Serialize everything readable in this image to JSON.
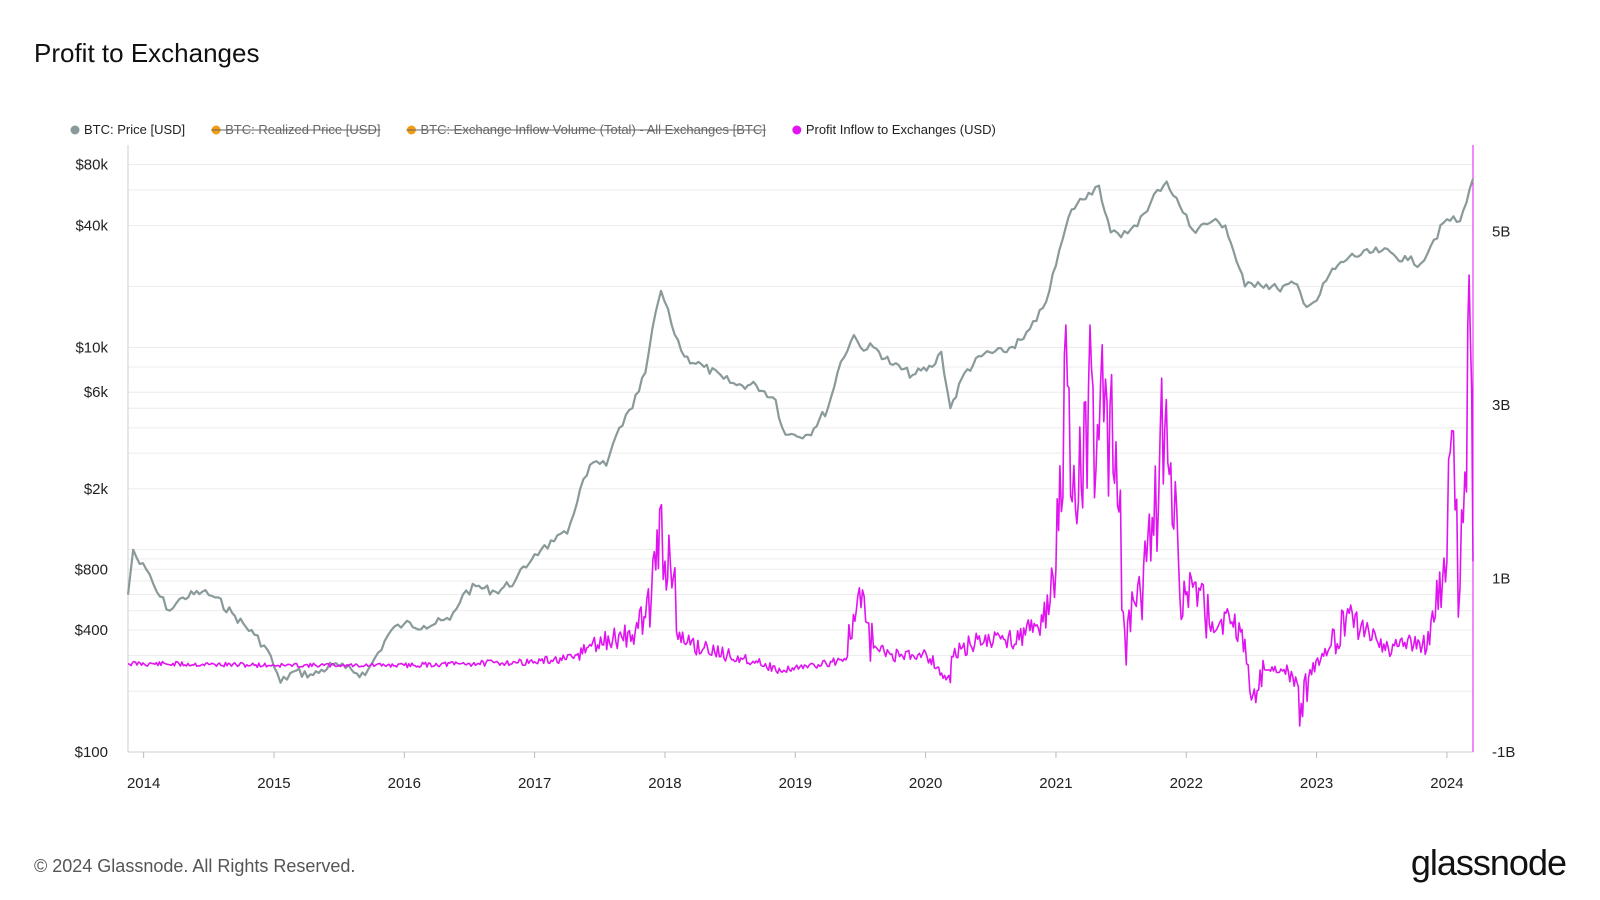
{
  "title": "Profit to Exchanges",
  "footer": {
    "copyright": "© 2024 Glassnode. All Rights Reserved.",
    "logo": "glassnode"
  },
  "colors": {
    "price": "#8a9a9b",
    "realized": "#f39c12",
    "inflow_volume": "#f39c12",
    "profit": "#e014f0",
    "grid": "#ececec"
  },
  "chart_data": {
    "type": "line",
    "legend_position": "top",
    "legend": [
      {
        "label": "BTC: Price [USD]",
        "color": "#8a9a9b",
        "enabled": true
      },
      {
        "label": "BTC: Realized Price [USD]",
        "color": "#f39c12",
        "enabled": false
      },
      {
        "label": "BTC: Exchange Inflow Volume (Total) - All Exchanges [BTC]",
        "color": "#f39c12",
        "enabled": false
      },
      {
        "label": "Profit Inflow to Exchanges (USD)",
        "color": "#e014f0",
        "enabled": true
      }
    ],
    "x_ticks": [
      "2014",
      "2015",
      "2016",
      "2017",
      "2018",
      "2019",
      "2020",
      "2021",
      "2022",
      "2023",
      "2024"
    ],
    "x_range": [
      2013.88,
      2024.2
    ],
    "y_left": {
      "scale": "log",
      "range": [
        100,
        100000
      ],
      "tick_values": [
        80000,
        40000,
        10000,
        6000,
        2000,
        800,
        400,
        100
      ],
      "tick_labels": [
        "$80k",
        "$40k",
        "$10k",
        "$6k",
        "$2k",
        "$800",
        "$400",
        "$100"
      ]
    },
    "y_right": {
      "scale": "linear",
      "range": [
        -1000000000,
        6000000000
      ],
      "tick_values": [
        5000000000,
        3000000000,
        1000000000,
        -1000000000
      ],
      "tick_labels": [
        "5B",
        "3B",
        "1B",
        "-1B"
      ]
    },
    "series": [
      {
        "name": "BTC: Price [USD]",
        "axis": "left",
        "x": [
          2013.88,
          2013.92,
          2013.97,
          2014.02,
          2014.1,
          2014.2,
          2014.3,
          2014.45,
          2014.55,
          2014.7,
          2014.85,
          2014.95,
          2015.05,
          2015.15,
          2015.3,
          2015.45,
          2015.55,
          2015.7,
          2015.8,
          2015.9,
          2016.0,
          2016.15,
          2016.35,
          2016.45,
          2016.55,
          2016.7,
          2016.85,
          2017.0,
          2017.05,
          2017.15,
          2017.25,
          2017.35,
          2017.45,
          2017.55,
          2017.65,
          2017.75,
          2017.85,
          2017.93,
          2017.97,
          2018.05,
          2018.15,
          2018.3,
          2018.45,
          2018.55,
          2018.7,
          2018.85,
          2018.9,
          2018.95,
          2019.1,
          2019.25,
          2019.35,
          2019.45,
          2019.5,
          2019.6,
          2019.75,
          2019.9,
          2020.05,
          2020.12,
          2020.19,
          2020.3,
          2020.45,
          2020.6,
          2020.75,
          2020.85,
          2020.95,
          2021.05,
          2021.12,
          2021.25,
          2021.33,
          2021.42,
          2021.5,
          2021.6,
          2021.7,
          2021.78,
          2021.85,
          2021.95,
          2022.05,
          2022.2,
          2022.3,
          2022.45,
          2022.55,
          2022.7,
          2022.85,
          2022.9,
          2023.0,
          2023.1,
          2023.25,
          2023.5,
          2023.7,
          2023.8,
          2023.9,
          2024.0,
          2024.1,
          2024.15,
          2024.2
        ],
        "y": [
          600,
          1000,
          850,
          800,
          620,
          500,
          580,
          620,
          580,
          470,
          380,
          320,
          220,
          250,
          240,
          270,
          260,
          240,
          310,
          400,
          430,
          420,
          450,
          600,
          660,
          620,
          700,
          950,
          1000,
          1100,
          1200,
          2000,
          2700,
          2600,
          4000,
          5000,
          7500,
          15000,
          19000,
          13000,
          9000,
          8000,
          7000,
          6500,
          6500,
          5500,
          4000,
          3700,
          3700,
          5000,
          8500,
          11500,
          10000,
          10000,
          8200,
          7300,
          8000,
          9500,
          5000,
          7500,
          9300,
          9500,
          11000,
          13500,
          19000,
          34000,
          48000,
          58000,
          63000,
          37000,
          35000,
          40000,
          47000,
          60000,
          66000,
          50000,
          38000,
          42000,
          40000,
          20000,
          21000,
          19500,
          20500,
          16500,
          17000,
          23000,
          28000,
          30000,
          27000,
          26000,
          34000,
          43000,
          42000,
          52000,
          68000
        ]
      },
      {
        "name": "Profit Inflow to Exchanges (USD)",
        "axis": "right",
        "x": [
          2013.88,
          2014.5,
          2015.0,
          2015.5,
          2016.0,
          2016.5,
          2017.0,
          2017.3,
          2017.4,
          2017.6,
          2017.75,
          2017.85,
          2017.93,
          2017.96,
          2018.0,
          2018.03,
          2018.1,
          2018.3,
          2018.5,
          2018.7,
          2018.9,
          2019.0,
          2019.2,
          2019.4,
          2019.48,
          2019.6,
          2019.8,
          2020.0,
          2020.19,
          2020.2,
          2020.4,
          2020.6,
          2020.8,
          2020.9,
          2021.0,
          2021.03,
          2021.1,
          2021.15,
          2021.25,
          2021.33,
          2021.38,
          2021.45,
          2021.55,
          2021.65,
          2021.75,
          2021.8,
          2021.87,
          2021.95,
          2022.05,
          2022.2,
          2022.35,
          2022.45,
          2022.5,
          2022.6,
          2022.75,
          2022.85,
          2022.87,
          2022.95,
          2023.1,
          2023.25,
          2023.4,
          2023.55,
          2023.7,
          2023.8,
          2023.9,
          2024.0,
          2024.05,
          2024.1,
          2024.15,
          2024.17,
          2024.2
        ],
        "y": [
          0.02,
          0.01,
          0.0,
          0.0,
          0.0,
          0.02,
          0.04,
          0.08,
          0.2,
          0.3,
          0.35,
          0.55,
          1.1,
          1.8,
          1.2,
          1.5,
          0.3,
          0.2,
          0.1,
          0.05,
          -0.08,
          -0.02,
          0.0,
          0.1,
          0.8,
          0.2,
          0.1,
          0.15,
          -0.2,
          0.1,
          0.3,
          0.3,
          0.4,
          0.5,
          1.1,
          2.3,
          3.2,
          1.8,
          3.2,
          2.6,
          3.3,
          2.1,
          0.5,
          0.8,
          1.5,
          2.7,
          2.2,
          0.8,
          0.9,
          0.5,
          0.5,
          0.3,
          -0.4,
          -0.05,
          -0.05,
          -0.2,
          -0.7,
          -0.05,
          0.2,
          0.6,
          0.4,
          0.2,
          0.3,
          0.15,
          0.5,
          1.2,
          2.7,
          0.9,
          2.0,
          4.5,
          1.2
        ]
      }
    ]
  }
}
